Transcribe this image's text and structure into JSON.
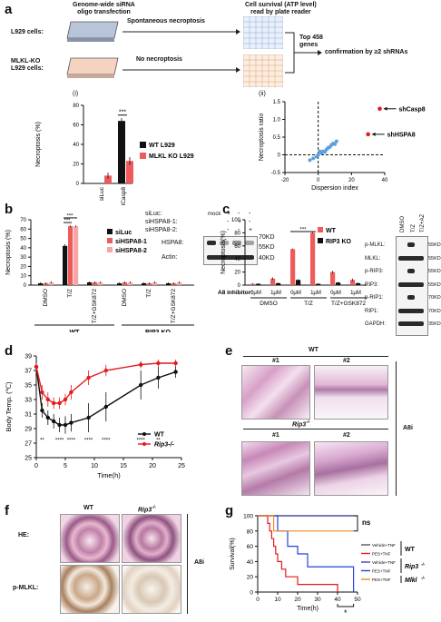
{
  "panel_labels": {
    "a": "a",
    "b": "b",
    "c": "c",
    "d": "d",
    "e": "e",
    "f": "f",
    "g": "g"
  },
  "panel_a": {
    "header_left": "Genome-wide siRNA\noligo transfection",
    "header_right": "Cell survival (ATP level)\nread by plate reader",
    "row1_label": "L929 cells:",
    "row1_arrow": "Spontaneous necroptosis",
    "row2_label": "MLKL-KO\nL929 cells:",
    "row2_arrow": "No necroptosis",
    "top_genes": "Top 458\ngenes",
    "confirmation": "confirmation by ≥2 shRNAs",
    "sub_i": "(i)",
    "sub_ii": "(ii)"
  },
  "chart_data": [
    {
      "id": "a-i",
      "type": "bar",
      "categories": [
        "siLuc",
        "siCasp8"
      ],
      "series": [
        {
          "name": "WT L929",
          "values": [
            0,
            64
          ],
          "errors": [
            0,
            3
          ]
        },
        {
          "name": "MLKL KO L929",
          "values": [
            8,
            23
          ],
          "errors": [
            3,
            4
          ]
        }
      ],
      "colors": [
        "#111111",
        "#f05a5a"
      ],
      "ylabel": "Necroptosis (%)",
      "ylim": [
        0,
        80
      ],
      "yticks": [
        "0",
        "20",
        "40",
        "60",
        "80"
      ],
      "significance": "***"
    },
    {
      "id": "a-ii",
      "type": "scatter",
      "xlabel": "Dispersion index",
      "ylabel": "Necroptosis ratio",
      "xlim": [
        -20,
        40
      ],
      "ylim": [
        -0.5,
        1.5
      ],
      "xticks": [
        "-20",
        "0",
        "20",
        "40"
      ],
      "yticks": [
        "-0.5",
        "0",
        "0.5",
        "1.0",
        "1.5"
      ],
      "points": [
        {
          "x": -3,
          "y": -0.1
        },
        {
          "x": -1,
          "y": -0.05
        },
        {
          "x": 0,
          "y": 0.0
        },
        {
          "x": 2,
          "y": 0.05
        },
        {
          "x": 3,
          "y": 0.1
        },
        {
          "x": 4,
          "y": 0.08
        },
        {
          "x": 5,
          "y": 0.15
        },
        {
          "x": 6,
          "y": 0.2
        },
        {
          "x": 7,
          "y": 0.22
        },
        {
          "x": 8,
          "y": 0.28
        },
        {
          "x": 9,
          "y": 0.32
        },
        {
          "x": 10,
          "y": 0.3
        },
        {
          "x": -5,
          "y": -0.15
        },
        {
          "x": 1,
          "y": 0.1
        },
        {
          "x": 11,
          "y": 0.38
        }
      ],
      "highlights": [
        {
          "label": "shCasp8",
          "x": 37,
          "y": 1.3
        },
        {
          "label": "shHSPA8",
          "x": 30,
          "y": 0.58
        }
      ]
    },
    {
      "id": "b",
      "type": "bar",
      "categories": [
        "DMSO",
        "T/Z",
        "T/Z+GSK872",
        "DMSO",
        "T/Z",
        "T/Z+GSK872"
      ],
      "groups": [
        "WT",
        "RIP3 KO"
      ],
      "series": [
        {
          "name": "siLuc",
          "values": [
            2,
            42,
            3,
            2,
            2,
            2
          ],
          "errors": [
            1,
            2,
            1,
            1,
            1,
            1
          ]
        },
        {
          "name": "siHSPA8-1",
          "values": [
            2,
            63,
            3,
            3,
            2,
            2
          ],
          "errors": [
            1,
            1,
            1,
            1,
            1,
            1
          ]
        },
        {
          "name": "siHSPA8-2",
          "values": [
            3,
            63,
            3,
            3,
            3,
            3
          ],
          "errors": [
            1,
            1,
            1,
            1,
            1,
            1
          ]
        }
      ],
      "colors": [
        "#111111",
        "#f05a5a",
        "#f7a5a5"
      ],
      "ylabel": "Necroptosis (%)",
      "ylim": [
        0,
        70
      ],
      "yticks": [
        "0",
        "10",
        "20",
        "30",
        "40",
        "50",
        "60",
        "70"
      ],
      "significance": [
        "***",
        "***"
      ]
    },
    {
      "id": "c",
      "type": "bar",
      "categories": [
        "0μM",
        "1μM",
        "0μM",
        "1μM",
        "0μM",
        "1μM"
      ],
      "groups": [
        "DMSO",
        "T/Z",
        "T/Z+GSK872"
      ],
      "x_prefix": "A8 inhibitor:",
      "series": [
        {
          "name": "WT",
          "values": [
            2,
            10,
            55,
            80,
            20,
            8
          ],
          "errors": [
            1,
            2,
            1,
            1,
            2,
            2
          ]
        },
        {
          "name": "RIP3 KO",
          "values": [
            2,
            3,
            8,
            2,
            4,
            3
          ],
          "errors": [
            1,
            1,
            1,
            1,
            1,
            1
          ]
        }
      ],
      "colors": [
        "#f05a5a",
        "#111111"
      ],
      "ylabel": "Necroptosis(%)",
      "ylim": [
        0,
        100
      ],
      "yticks": [
        "0",
        "20",
        "40",
        "60",
        "80",
        "100"
      ],
      "significance": "***"
    },
    {
      "id": "d",
      "type": "line",
      "xlabel": "Time(h)",
      "ylabel": "Body Temp. (℃)",
      "xlim": [
        0,
        25
      ],
      "ylim": [
        25,
        39
      ],
      "xticks": [
        "0",
        "5",
        "10",
        "15",
        "20",
        "25"
      ],
      "yticks": [
        "25",
        "27",
        "29",
        "31",
        "33",
        "35",
        "37",
        "39"
      ],
      "x": [
        0,
        1,
        2,
        3,
        4,
        5,
        6,
        9,
        12,
        18,
        21,
        24
      ],
      "series": [
        {
          "name": "WT",
          "values": [
            37.5,
            31.5,
            30.5,
            30.0,
            29.5,
            29.5,
            29.8,
            30.5,
            32.0,
            35.0,
            36.0,
            36.8
          ],
          "errors": [
            0.5,
            1.0,
            1.0,
            1.0,
            1.0,
            1.2,
            1.2,
            2.0,
            2.0,
            2.0,
            1.5,
            0.8
          ]
        },
        {
          "name": "Rip3-/-",
          "values": [
            37.5,
            34.0,
            33.0,
            32.5,
            32.5,
            33.0,
            34.0,
            36.0,
            37.0,
            37.8,
            38.0,
            38.0
          ],
          "errors": [
            0.5,
            1.0,
            1.0,
            0.8,
            0.8,
            0.8,
            1.0,
            1.0,
            0.8,
            0.5,
            0.5,
            0.5
          ]
        }
      ],
      "colors": [
        "#111111",
        "#e41a1c"
      ],
      "significance": [
        {
          "x": 1,
          "text": "**"
        },
        {
          "x": 4,
          "text": "****"
        },
        {
          "x": 6,
          "text": "****"
        },
        {
          "x": 9,
          "text": "****"
        },
        {
          "x": 12,
          "text": "****"
        },
        {
          "x": 18,
          "text": "****"
        },
        {
          "x": 21,
          "text": "**"
        }
      ]
    },
    {
      "id": "g",
      "type": "line",
      "subtype": "survival",
      "xlabel": "Time(h)",
      "ylabel": "Survival(%)",
      "xlim": [
        0,
        50
      ],
      "ylim": [
        0,
        100
      ],
      "xticks": [
        "0",
        "10",
        "20",
        "30",
        "40",
        "50"
      ],
      "yticks": [
        "0",
        "20",
        "40",
        "60",
        "80",
        "100"
      ],
      "series": [
        {
          "name": "Vehicle+TNF",
          "color": "#555555",
          "steps": [
            [
              0,
              100
            ],
            [
              50,
              100
            ]
          ]
        },
        {
          "name": "PES+TNF",
          "color": "#e41a1c",
          "steps": [
            [
              0,
              100
            ],
            [
              5,
              90
            ],
            [
              6,
              80
            ],
            [
              7,
              70
            ],
            [
              8,
              60
            ],
            [
              9,
              50
            ],
            [
              10,
              40
            ],
            [
              12,
              30
            ],
            [
              14,
              20
            ],
            [
              20,
              10
            ],
            [
              40,
              0
            ]
          ]
        },
        {
          "name": "Vehicle+TNF",
          "color": "#4444aa",
          "steps": [
            [
              0,
              100
            ],
            [
              48,
              100
            ]
          ]
        },
        {
          "name": "PES+TNF",
          "color": "#2244dd",
          "steps": [
            [
              0,
              100
            ],
            [
              10,
              80
            ],
            [
              15,
              60
            ],
            [
              20,
              50
            ],
            [
              25,
              33
            ],
            [
              48,
              0
            ]
          ]
        },
        {
          "name": "PES+TNF",
          "color": "#f08a24",
          "steps": [
            [
              0,
              100
            ],
            [
              8,
              80
            ],
            [
              48,
              80
            ]
          ]
        }
      ],
      "ns": "ns",
      "star": "*"
    }
  ],
  "panel_b_legend": {
    "rows": [
      "siLuc:",
      "siHSPA8-1:",
      "siHSPA8-2:"
    ],
    "cols": [
      "mock",
      "+",
      "-",
      "-",
      "-",
      "+",
      "-",
      "-",
      "-",
      "+"
    ],
    "blots": [
      "HSPA8:",
      "Actin:"
    ],
    "weights": [
      "70KD",
      "55KD",
      "40KD"
    ],
    "groups": [
      "WT",
      "RIP3 KO"
    ]
  },
  "panel_c_blot": {
    "columns": [
      "DMSO",
      "T/Z",
      "T/Z+AZ"
    ],
    "rows": [
      "p-MLKL:",
      "MLKL:",
      "p-RIP3:",
      "RIP3:",
      "p-RIP1:",
      "RIP1:",
      "GAPDH:"
    ],
    "weights": [
      "55KD",
      "55KD",
      "55KD",
      "55KD",
      "70KD",
      "70KD",
      "35KD"
    ],
    "inhibitor_label": "A8 inhibitor:"
  },
  "panel_e": {
    "wt": "WT",
    "rip3": "Rip3",
    "rip3_sup": "-/-",
    "n1": "#1",
    "n2": "#2",
    "side": "A8i"
  },
  "panel_f": {
    "wt": "WT",
    "rip3": "Rip3",
    "rip3_sup": "-/-",
    "he": "HE:",
    "pmlkl": "p-MLKL:",
    "side": "A8i"
  },
  "panel_g_legend": {
    "items": [
      "Vehicle+TNF",
      "PES+TNF",
      "Vehicle+TNF",
      "PES+TNF",
      "PES+TNF"
    ],
    "groups": [
      "WT",
      "Rip3",
      "Mlkl"
    ],
    "sup": "-/-"
  }
}
